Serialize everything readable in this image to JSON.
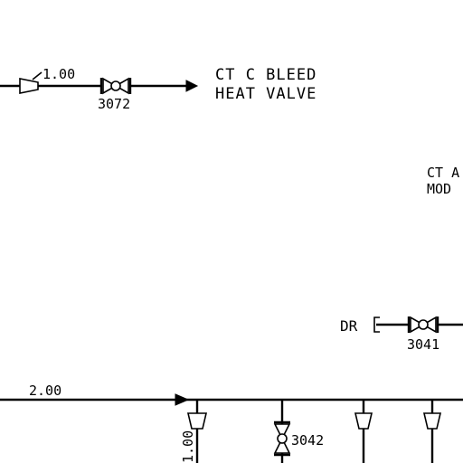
{
  "top_line": {
    "size_label": "1.00",
    "valve_tag": "3072",
    "destination_line1": "CT C BLEED",
    "destination_line2": "HEAT VALVE"
  },
  "right_note": {
    "line1": "CT A",
    "line2": "MOD"
  },
  "drain": {
    "label": "DR",
    "valve_tag": "3041"
  },
  "bottom_header": {
    "size_label": "2.00",
    "branch_size_label": "1.00",
    "valve_tag": "3042"
  }
}
